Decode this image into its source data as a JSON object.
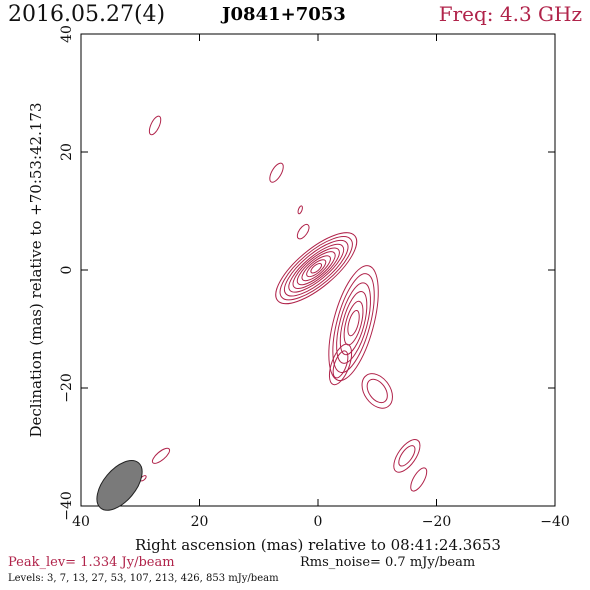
{
  "header": {
    "date": "2016.05.27(4)",
    "source": "J0841+7053",
    "freq": "Freq: 4.3 GHz"
  },
  "footer": {
    "peak": "Peak_lev=  1.334 Jy/beam",
    "rms": "Rms_noise=   0.7 mJy/beam",
    "levels": "Levels:   3,   7,  13,  27,  53, 107, 213, 426, 853 mJy/beam"
  },
  "colors": {
    "contour": "#b0234a",
    "beam": "#7a7a7a"
  },
  "chart_data": {
    "type": "contour",
    "xlabel": "Right ascension (mas) relative to 08:41:24.3653",
    "ylabel": "Declination (mas) relative to +70:53:42.173",
    "xlim": [
      40,
      -40
    ],
    "ylim": [
      -40,
      40
    ],
    "xticks": [
      40,
      20,
      0,
      -20,
      -40
    ],
    "yticks": [
      -40,
      -20,
      0,
      20,
      40
    ],
    "xtick_labels": [
      "40",
      "20",
      "0",
      "−20",
      "−40"
    ],
    "ytick_labels": [
      "−40",
      "−20",
      "0",
      "20",
      "40"
    ],
    "levels_mjy": [
      3,
      7,
      13,
      27,
      53,
      107,
      213,
      426,
      853
    ],
    "peak_jy_per_beam": 1.334,
    "rms_mjy_per_beam": 0.7,
    "beam": {
      "x": 33.5,
      "y": -36.5,
      "major": 5.0,
      "minor": 2.7,
      "angle": 40
    },
    "components": [
      {
        "name": "core",
        "x": 0.3,
        "y": 0.3,
        "levels": [
          [
            8.5,
            3.2,
            40
          ],
          [
            7.6,
            2.8,
            40
          ],
          [
            6.7,
            2.4,
            40
          ],
          [
            5.8,
            2.0,
            40
          ],
          [
            4.9,
            1.7,
            40
          ],
          [
            4.0,
            1.4,
            40
          ],
          [
            3.0,
            1.1,
            40
          ],
          [
            2.0,
            0.8,
            40
          ],
          [
            1.1,
            0.5,
            40
          ]
        ]
      },
      {
        "name": "jet-1",
        "x": -6.0,
        "y": -9.0,
        "levels": [
          [
            10.0,
            3.4,
            75
          ],
          [
            8.6,
            2.8,
            75
          ],
          [
            7.0,
            2.3,
            75
          ],
          [
            5.5,
            1.8,
            75
          ],
          [
            3.8,
            1.3,
            75
          ],
          [
            2.2,
            0.8,
            75
          ]
        ]
      },
      {
        "name": "jet-2",
        "x": -3.8,
        "y": -16.0,
        "levels": [
          [
            3.6,
            1.5,
            70
          ],
          [
            2.4,
            1.0,
            70
          ]
        ]
      },
      {
        "name": "knot-south",
        "x": -10.0,
        "y": -20.5,
        "levels": [
          [
            3.2,
            2.2,
            125
          ],
          [
            2.2,
            1.4,
            125
          ]
        ]
      },
      {
        "name": "knot-far-1",
        "x": -15.0,
        "y": -31.5,
        "levels": [
          [
            3.2,
            1.5,
            55
          ],
          [
            2.0,
            0.9,
            55
          ]
        ]
      },
      {
        "name": "knot-far-2",
        "x": -17.0,
        "y": -35.5,
        "levels": [
          [
            2.2,
            0.9,
            60
          ]
        ]
      },
      {
        "name": "blob-nw-1",
        "x": 27.5,
        "y": 24.5,
        "levels": [
          [
            1.7,
            0.7,
            65
          ]
        ]
      },
      {
        "name": "blob-nw-2",
        "x": 7.0,
        "y": 16.5,
        "levels": [
          [
            1.8,
            0.8,
            60
          ]
        ]
      },
      {
        "name": "blob-mid-1",
        "x": 2.5,
        "y": 6.5,
        "levels": [
          [
            1.4,
            0.7,
            55
          ]
        ]
      },
      {
        "name": "blob-mid-2",
        "x": 3.0,
        "y": 10.2,
        "levels": [
          [
            0.7,
            0.3,
            70
          ]
        ]
      },
      {
        "name": "blob-sw-1",
        "x": 26.5,
        "y": -31.5,
        "levels": [
          [
            1.8,
            0.7,
            40
          ]
        ]
      },
      {
        "name": "blob-sw-2",
        "x": 29.5,
        "y": -35.3,
        "levels": [
          [
            0.6,
            0.3,
            40
          ]
        ]
      }
    ]
  }
}
